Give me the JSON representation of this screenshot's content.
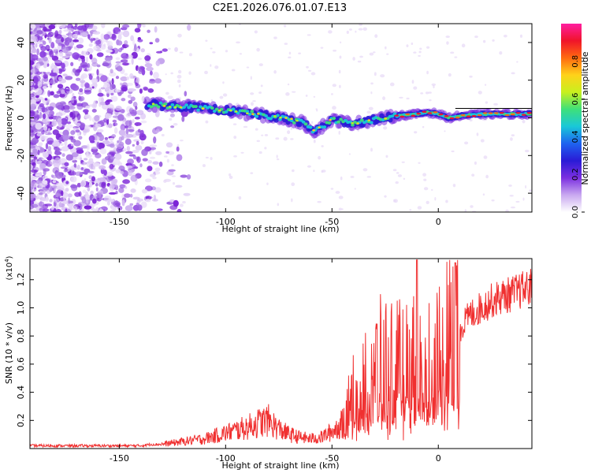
{
  "title": "C2E1.2026.076.01.07.E13",
  "colorbar": {
    "label": "Normalized spectral amplitude",
    "ticks": [
      "0.0",
      "0.2",
      "0.4",
      "0.6",
      "0.8"
    ],
    "tick_values": [
      0.0,
      0.2,
      0.4,
      0.6,
      0.8
    ],
    "range": [
      0,
      1
    ],
    "colors": [
      "#ffffff",
      "#c9a8f0",
      "#7b2fe0",
      "#2a1bd6",
      "#1e63f0",
      "#19c8d8",
      "#3ee07a",
      "#c8f01e",
      "#ffd21a",
      "#ff6a10",
      "#f0142a",
      "#ff1ea0"
    ]
  },
  "chart_data": [
    {
      "type": "heatmap",
      "title": "C2E1.2026.076.01.07.E13",
      "xlabel": "Height of straight line (km)",
      "ylabel": "Frequency (Hz)",
      "xlim": [
        -192,
        44
      ],
      "ylim": [
        -50,
        50
      ],
      "xticks": [
        -150,
        -100,
        -50,
        0
      ],
      "xtick_labels": [
        "-150",
        "-100",
        "-50",
        "0"
      ],
      "yticks": [
        -40,
        -20,
        0,
        20,
        40
      ],
      "ytick_labels": [
        "-40",
        "-20",
        "0",
        "20",
        "40"
      ],
      "ridge": {
        "x": [
          -135,
          -120,
          -100,
          -80,
          -65,
          -58,
          -50,
          -40,
          -30,
          -20,
          -10,
          -5,
          0,
          5,
          10,
          20,
          30,
          44
        ],
        "y": [
          7,
          6,
          4,
          1,
          -2,
          -7,
          -1,
          -3,
          -1,
          1,
          2,
          3,
          2,
          0,
          1,
          2,
          2,
          2
        ]
      }
    },
    {
      "type": "line",
      "xlabel": "Height of straight line (km)",
      "ylabel": "SNR (10 * v/v)",
      "y_multiplier": "(x10",
      "y_multiplier_exp": "4",
      "xlim": [
        -192,
        44
      ],
      "ylim": [
        0,
        1.35
      ],
      "xticks": [
        -150,
        -100,
        -50,
        0
      ],
      "xtick_labels": [
        "-150",
        "-100",
        "-50",
        "0"
      ],
      "yticks": [
        0.2,
        0.4,
        0.6,
        0.8,
        1.0,
        1.2
      ],
      "ytick_labels": [
        "0.2",
        "0.4",
        "0.6",
        "0.8",
        "1.0",
        "1.2"
      ],
      "series": [
        {
          "name": "SNR",
          "color": "#f03030",
          "x": [
            -192,
            -180,
            -170,
            -160,
            -150,
            -140,
            -135,
            -130,
            -125,
            -120,
            -115,
            -110,
            -105,
            -100,
            -95,
            -90,
            -85,
            -80,
            -75,
            -70,
            -65,
            -60,
            -55,
            -50,
            -45,
            -40,
            -35,
            -30,
            -25,
            -20,
            -15,
            -10,
            -5,
            0,
            5,
            10,
            15,
            20,
            25,
            30,
            35,
            40,
            44
          ],
          "values": [
            0.02,
            0.02,
            0.02,
            0.02,
            0.02,
            0.02,
            0.03,
            0.03,
            0.04,
            0.05,
            0.06,
            0.07,
            0.09,
            0.11,
            0.13,
            0.15,
            0.18,
            0.2,
            0.14,
            0.1,
            0.08,
            0.07,
            0.08,
            0.12,
            0.18,
            0.35,
            0.45,
            0.55,
            0.6,
            0.58,
            0.55,
            0.62,
            0.6,
            0.68,
            0.75,
            0.85,
            0.95,
            1.0,
            1.05,
            1.08,
            1.1,
            1.13,
            1.15
          ]
        }
      ]
    }
  ]
}
